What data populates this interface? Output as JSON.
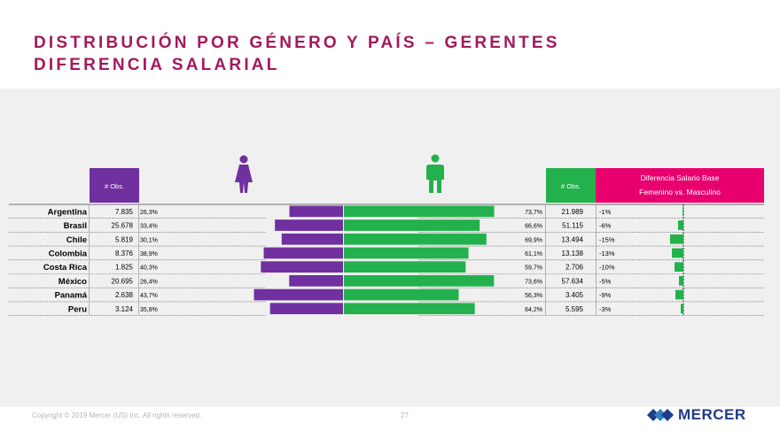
{
  "title": {
    "line1": "DISTRIBUCIÓN POR GÉNERO Y PAÍS – GERENTES",
    "line2": "DIFERENCIA SALARIAL"
  },
  "headers": {
    "female_obs": "# Obs.",
    "male_obs": "# Obs.",
    "diff_line1": "Diferencia Salario Base",
    "diff_line2": "Femenino vs. Masculino"
  },
  "colors": {
    "female": "#7030a0",
    "male": "#22b14c",
    "diff_header": "#e8006f",
    "title": "#a3195b",
    "diff_bar": "#22b14c"
  },
  "footer": {
    "copyright": "Copyright © 2019 Mercer (US) Inc. All rights reserved.",
    "page": "27",
    "brand": "MERCER"
  },
  "chart_data": {
    "type": "bar",
    "title": "Distribución por género y país – Gerentes",
    "categories": [
      "Argentina",
      "Brasil",
      "Chile",
      "Colombia",
      "Costa Rica",
      "México",
      "Panamá",
      "Peru"
    ],
    "series": [
      {
        "name": "Femenino",
        "obs": [
          "7.835",
          "25.678",
          "5.819",
          "8.376",
          "1.825",
          "20.695",
          "2.638",
          "3.124"
        ],
        "pct_labels": [
          "26,3%",
          "33,4%",
          "30,1%",
          "38,9%",
          "40,3%",
          "26,4%",
          "43,7%",
          "35,8%"
        ],
        "values": [
          26.3,
          33.4,
          30.1,
          38.9,
          40.3,
          26.4,
          43.7,
          35.8
        ]
      },
      {
        "name": "Masculino",
        "obs": [
          "21.989",
          "51.115",
          "13.494",
          "13.138",
          "2.706",
          "57.634",
          "3.405",
          "5.595"
        ],
        "pct_labels": [
          "73,7%",
          "66,6%",
          "69,9%",
          "61,1%",
          "59,7%",
          "73,6%",
          "56,3%",
          "64,2%"
        ],
        "values": [
          73.7,
          66.6,
          69.9,
          61.1,
          59.7,
          73.6,
          56.3,
          64.2
        ]
      },
      {
        "name": "Diferencia Salario Base Femenino vs. Masculino",
        "labels": [
          "-1%",
          "-6%",
          "-15%",
          "-13%",
          "-10%",
          "-5%",
          "-9%",
          "-3%"
        ],
        "values": [
          -1,
          -6,
          -15,
          -13,
          -10,
          -5,
          -9,
          -3
        ]
      }
    ]
  }
}
